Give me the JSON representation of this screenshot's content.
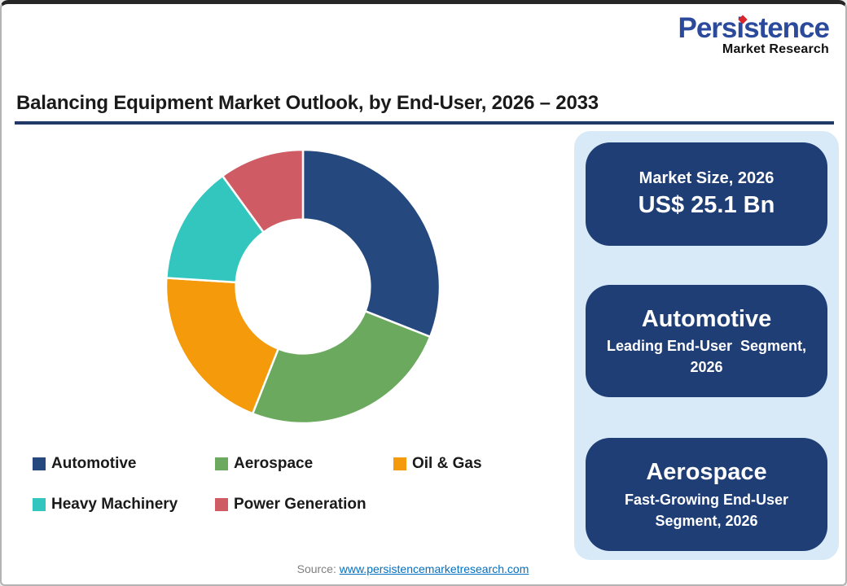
{
  "logo": {
    "word": "Persistence",
    "sub": "Market Research",
    "blue": "#2b4a9b",
    "dot_red": "#d8262c"
  },
  "title": {
    "text": "Balancing Equipment Market Outlook, by End-User, 2026 – 2033",
    "underline_color": "#1f3864"
  },
  "chart_data": {
    "type": "pie",
    "subtype": "donut",
    "title": "Balancing Equipment Market Outlook, by End-User, 2026 – 2033",
    "categories": [
      "Automotive",
      "Aerospace",
      "Oil & Gas",
      "Heavy Machinery",
      "Power Generation"
    ],
    "values": [
      31,
      25,
      20,
      14,
      10
    ],
    "values_are_estimates": true,
    "unit": "% share (estimated from arc angles; no data labels shown)",
    "colors": [
      "#25497f",
      "#6ba95e",
      "#f49a0b",
      "#32c6bf",
      "#cf5c64"
    ],
    "start_angle_deg": 0,
    "direction": "clockwise",
    "inner_radius_ratio": 0.49,
    "legend_position": "bottom-left",
    "separator_color": "#ffffff"
  },
  "legend": {
    "items": [
      {
        "label": "Automotive",
        "color": "#25497f"
      },
      {
        "label": "Aerospace",
        "color": "#6ba95e"
      },
      {
        "label": "Oil & Gas",
        "color": "#f49a0b"
      },
      {
        "label": "Heavy Machinery",
        "color": "#32c6bf"
      },
      {
        "label": "Power Generation",
        "color": "#cf5c64"
      }
    ]
  },
  "sidebar": {
    "bg": "#d8eaf7",
    "card_bg": "#1f3e76",
    "cards": [
      {
        "line1": "Market Size, 2026",
        "line2": "US$ 25.1 Bn"
      },
      {
        "line1": "Automotive",
        "line2": "Leading End-User  Segment, 2026"
      },
      {
        "line1": "Aerospace",
        "line2": "Fast-Growing End-User Segment, 2026"
      }
    ]
  },
  "footer": {
    "label": "Source:",
    "link": "www.persistencemarketresearch.com"
  }
}
